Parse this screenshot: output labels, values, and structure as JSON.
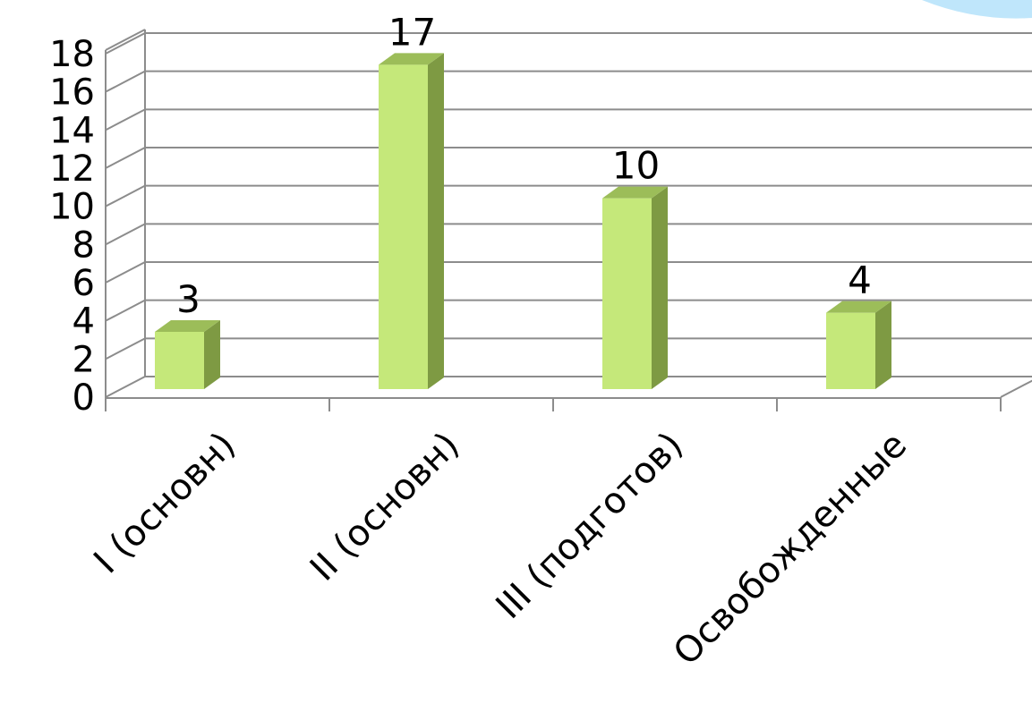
{
  "chart_data": {
    "type": "bar",
    "categories": [
      "I (основн)",
      "II (основн)",
      "III (подготов)",
      "Освобожденные"
    ],
    "values": [
      3,
      17,
      10,
      4
    ],
    "data_labels": [
      "3",
      "17",
      "10",
      "4"
    ],
    "ylim": [
      0,
      18
    ],
    "y_ticks": [
      "0",
      "2",
      "4",
      "6",
      "8",
      "10",
      "12",
      "14",
      "16",
      "18"
    ],
    "grid": true,
    "style": "3d-column",
    "colors": {
      "bar_front": "#c5e87a",
      "bar_side": "#7e9a43",
      "bar_top": "#9cbd59",
      "grid": "#8c8c8c",
      "accent_swoosh": "#bfe6fb"
    }
  }
}
